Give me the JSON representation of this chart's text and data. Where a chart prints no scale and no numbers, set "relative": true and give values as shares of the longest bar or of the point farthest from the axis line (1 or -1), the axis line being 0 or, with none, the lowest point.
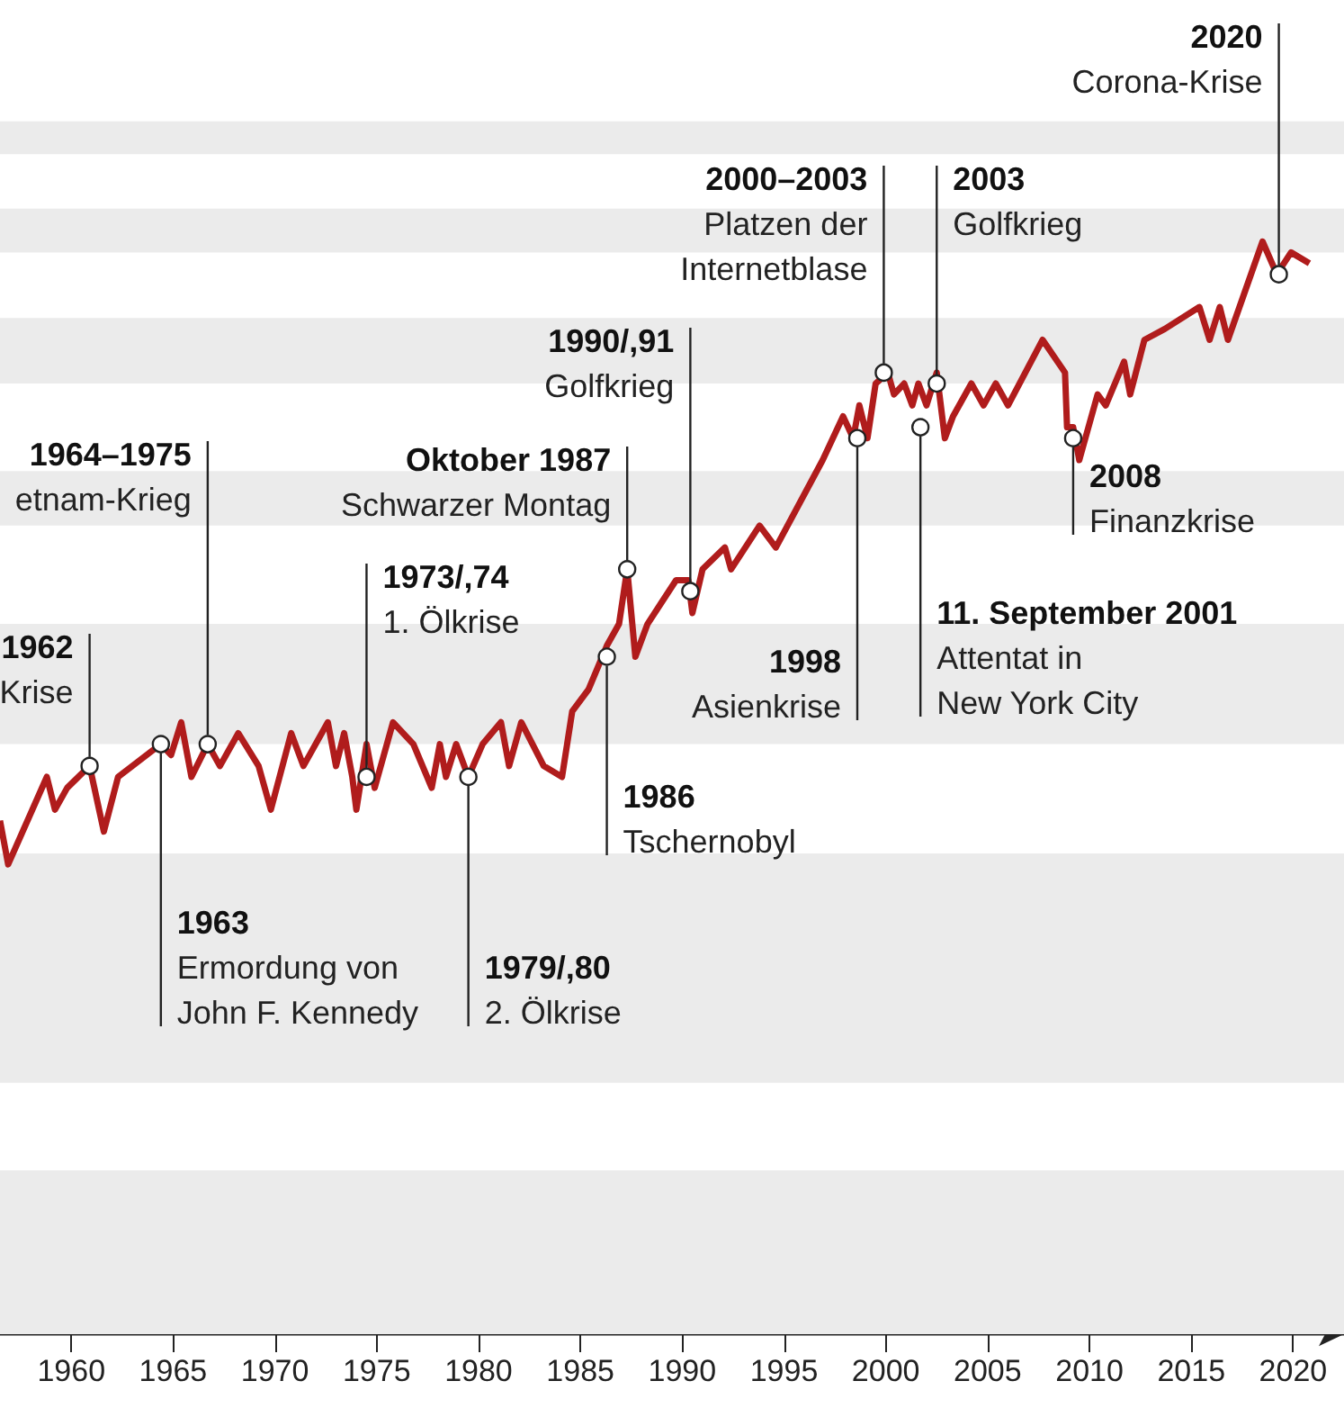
{
  "chart_data": {
    "type": "line",
    "relative": true,
    "xlim": [
      1956.5,
      2022.5
    ],
    "xticks": [
      1960,
      1965,
      1970,
      1975,
      1980,
      1985,
      1990,
      1995,
      2000,
      2005,
      2010,
      2015,
      2020
    ],
    "x": [
      1956.5,
      1956.9,
      1958.8,
      1959.2,
      1959.8,
      1960.9,
      1961.6,
      1962.3,
      1964.4,
      1964.9,
      1965.4,
      1965.9,
      1966.7,
      1967.3,
      1968.2,
      1969.2,
      1969.8,
      1970.8,
      1971.4,
      1972.6,
      1973.0,
      1973.4,
      1973.8,
      1974.0,
      1974.5,
      1974.9,
      1975.8,
      1976.8,
      1977.7,
      1978.1,
      1978.4,
      1978.9,
      1979.5,
      1980.2,
      1981.1,
      1981.5,
      1982.1,
      1983.2,
      1984.1,
      1984.6,
      1985.4,
      1986.3,
      1986.9,
      1987.3,
      1987.7,
      1988.3,
      1989.0,
      1989.7,
      1990.3,
      1990.5,
      1991.0,
      1992.1,
      1992.4,
      1993.8,
      1994.6,
      1996.9,
      1997.9,
      1998.4,
      1998.7,
      1999.1,
      1999.5,
      2000.1,
      2000.4,
      2000.9,
      2001.3,
      2001.6,
      2002.0,
      2002.5,
      2002.9,
      2003.3,
      2004.2,
      2004.8,
      2005.4,
      2006.0,
      2007.7,
      2008.8,
      2008.9,
      2009.2,
      2009.5,
      2010.4,
      2010.8,
      2011.7,
      2012.0,
      2012.7,
      2013.7,
      2015.4,
      2015.9,
      2016.4,
      2016.8,
      2018.5,
      2019.2,
      2019.9,
      2020.8
    ],
    "series": [
      {
        "color": "#b01c1c",
        "values": [
          0.47,
          0.43,
          0.51,
          0.48,
          0.5,
          0.52,
          0.46,
          0.51,
          0.54,
          0.53,
          0.56,
          0.51,
          0.54,
          0.52,
          0.55,
          0.52,
          0.48,
          0.55,
          0.52,
          0.56,
          0.52,
          0.55,
          0.51,
          0.48,
          0.54,
          0.5,
          0.56,
          0.54,
          0.5,
          0.54,
          0.51,
          0.54,
          0.51,
          0.54,
          0.56,
          0.52,
          0.56,
          0.52,
          0.51,
          0.57,
          0.59,
          0.63,
          0.65,
          0.7,
          0.62,
          0.65,
          0.67,
          0.69,
          0.69,
          0.66,
          0.7,
          0.72,
          0.7,
          0.74,
          0.72,
          0.8,
          0.84,
          0.82,
          0.85,
          0.82,
          0.87,
          0.88,
          0.86,
          0.87,
          0.85,
          0.87,
          0.85,
          0.88,
          0.82,
          0.84,
          0.87,
          0.85,
          0.87,
          0.85,
          0.91,
          0.88,
          0.83,
          0.83,
          0.8,
          0.86,
          0.85,
          0.89,
          0.86,
          0.91,
          0.92,
          0.94,
          0.91,
          0.94,
          0.91,
          1.0,
          0.97,
          0.99,
          0.98
        ]
      }
    ],
    "bands": [
      {
        "axis": "y",
        "from": 0,
        "to": 0.15,
        "color": "#ebebeb"
      },
      {
        "axis": "y",
        "from": 0.23,
        "to": 0.44,
        "color": "#ebebeb"
      },
      {
        "axis": "y",
        "from": 0.54,
        "to": 0.65,
        "color": "#ebebeb"
      },
      {
        "axis": "y",
        "from": 0.74,
        "to": 0.79,
        "color": "#ebebeb"
      },
      {
        "axis": "y",
        "from": 0.87,
        "to": 0.93,
        "color": "#ebebeb"
      },
      {
        "axis": "y",
        "from": 0.99,
        "to": 1.03,
        "color": "#ebebeb"
      },
      {
        "axis": "y",
        "from": 1.08,
        "to": 1.11,
        "color": "#ebebeb"
      }
    ],
    "annotations": [
      {
        "text": "1962\nKrise",
        "x": 1960.9,
        "y": 0.52
      },
      {
        "text": "1963\nErmordung von\nJohn F. Kennedy",
        "x": 1964.4,
        "y": 0.54
      },
      {
        "text": "1964–1975\netnam-Krieg",
        "x": 1966.7,
        "y": 0.54
      },
      {
        "text": "1973/,74\n1. Ölkrise",
        "x": 1974.5,
        "y": 0.51
      },
      {
        "text": "1979/,80\n2. Ölkrise",
        "x": 1979.5,
        "y": 0.51
      },
      {
        "text": "1986\nTschernobyl",
        "x": 1986.3,
        "y": 0.62
      },
      {
        "text": "Oktober 1987\nSchwarzer Montag",
        "x": 1987.3,
        "y": 0.7
      },
      {
        "text": "1990/,91\nGolfkrieg",
        "x": 1990.4,
        "y": 0.68
      },
      {
        "text": "1998\nAsienkrise",
        "x": 1998.6,
        "y": 0.82
      },
      {
        "text": "2000–2003\nPlatzen der\nInternetblase",
        "x": 1999.9,
        "y": 0.88
      },
      {
        "text": "11. September 2001\nAttentat in\nNew York City",
        "x": 2001.7,
        "y": 0.83
      },
      {
        "text": "2003\nGolfkrieg",
        "x": 2002.5,
        "y": 0.87
      },
      {
        "text": "2008\nFinanzkrise",
        "x": 2009.2,
        "y": 0.82
      },
      {
        "text": "2020\nCorona-Krise",
        "x": 2019.3,
        "y": 0.97
      }
    ]
  }
}
